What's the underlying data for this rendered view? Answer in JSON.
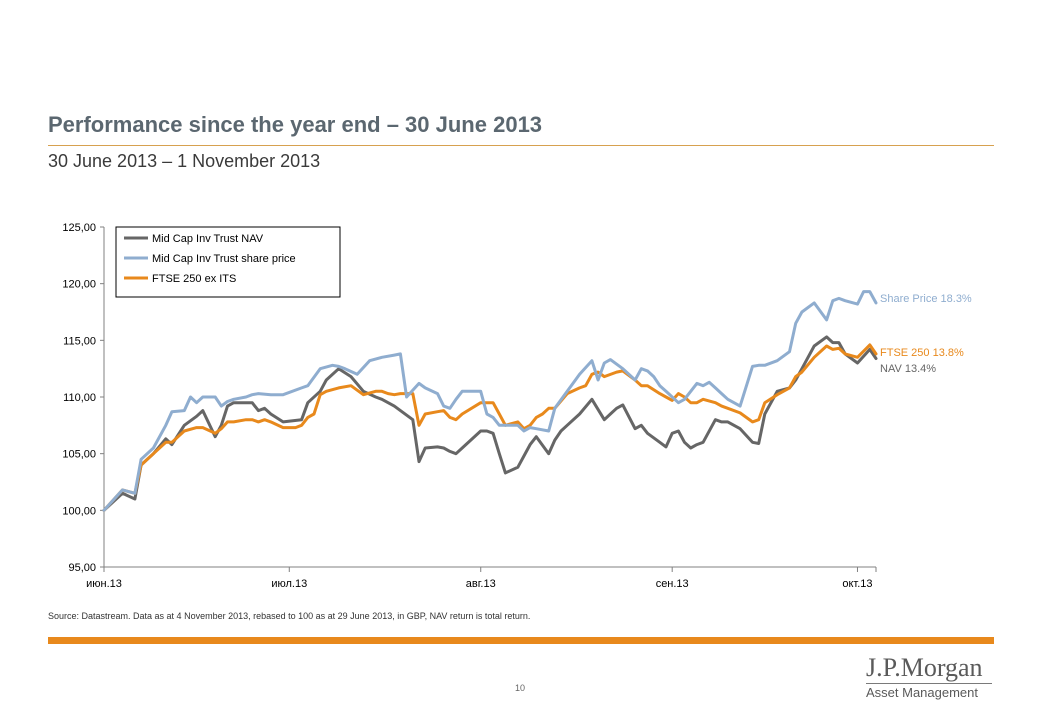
{
  "header": {
    "title": "Performance since the year end – 30 June 2013",
    "subtitle": "30 June 2013 – 1 November 2013"
  },
  "footer": {
    "source": "Source: Datastream. Data as at 4 November 2013, rebased to 100 as at 29 June 2013, in GBP, NAV return is total return.",
    "page_number": "10"
  },
  "logo": {
    "line1": "J.P.Morgan",
    "line2": "Asset Management"
  },
  "colors": {
    "title": "#5b6770",
    "accent_orange": "#e8891c",
    "nav": "#666666",
    "share_price": "#8fadcf",
    "ftse": "#e8891c"
  },
  "chart_data": {
    "type": "line",
    "ylim": [
      95,
      125
    ],
    "yticks": [
      "95,00",
      "100,00",
      "105,00",
      "110,00",
      "115,00",
      "120,00",
      "125,00"
    ],
    "ytick_values": [
      95,
      100,
      105,
      110,
      115,
      120,
      125
    ],
    "x_range": [
      0,
      125
    ],
    "xticks": [
      "июн.13",
      "июл.13",
      "авг.13",
      "сен.13",
      "окт.13"
    ],
    "xtick_values": [
      0,
      30,
      61,
      92,
      122
    ],
    "grid": false,
    "legend": "top-left",
    "end_labels": {
      "share_price": "Share Price 18.3%",
      "ftse": "FTSE 250 13.8%",
      "nav": "NAV 13.4%"
    },
    "series": [
      {
        "key": "nav",
        "name": "Mid Cap Inv Trust NAV",
        "color": "#666666",
        "x": [
          0,
          3,
          5,
          6,
          8,
          10,
          11,
          13,
          15,
          16,
          18,
          19,
          20,
          21,
          22,
          24,
          25,
          26,
          27,
          29,
          32,
          33,
          35,
          36,
          38,
          40,
          42,
          44,
          45,
          46,
          47,
          48,
          50,
          51,
          52,
          54,
          55,
          56,
          57,
          58,
          61,
          62,
          63,
          64,
          65,
          67,
          68,
          69,
          70,
          72,
          73,
          74,
          75,
          77,
          79,
          81,
          82,
          83,
          84,
          86,
          87,
          88,
          90,
          91,
          92,
          93,
          94,
          95,
          96,
          97,
          99,
          100,
          101,
          103,
          105,
          106,
          107,
          109,
          111,
          112,
          113,
          115,
          117,
          118,
          119,
          120,
          122,
          124,
          125
        ],
        "y": [
          100.0,
          101.5,
          101.0,
          104.0,
          105.0,
          106.3,
          105.8,
          107.5,
          108.3,
          108.8,
          106.5,
          107.5,
          109.2,
          109.5,
          109.5,
          109.5,
          108.8,
          109.0,
          108.5,
          107.8,
          108.0,
          109.5,
          110.5,
          111.5,
          112.5,
          111.8,
          110.5,
          110.0,
          109.8,
          109.5,
          109.2,
          108.8,
          108.0,
          104.3,
          105.5,
          105.6,
          105.5,
          105.2,
          105.0,
          105.5,
          107.0,
          107.0,
          106.8,
          105.0,
          103.3,
          103.8,
          104.8,
          105.8,
          106.5,
          105.0,
          106.2,
          107.0,
          107.5,
          108.5,
          109.8,
          108.0,
          108.5,
          109.0,
          109.3,
          107.2,
          107.5,
          106.8,
          106.0,
          105.6,
          106.8,
          107.0,
          106.0,
          105.5,
          105.8,
          106.0,
          108.0,
          107.8,
          107.8,
          107.2,
          106.0,
          105.9,
          108.5,
          110.5,
          110.8,
          111.5,
          112.5,
          114.5,
          115.3,
          114.8,
          114.8,
          113.8,
          113.0,
          114.2,
          113.4
        ]
      },
      {
        "key": "share_price",
        "name": "Mid Cap Inv Trust share price",
        "color": "#8fadcf",
        "x": [
          0,
          3,
          5,
          6,
          8,
          10,
          11,
          13,
          14,
          15,
          16,
          18,
          19,
          20,
          21,
          23,
          24,
          25,
          27,
          29,
          32,
          33,
          35,
          37,
          38,
          39,
          41,
          43,
          45,
          47,
          48,
          49,
          51,
          52,
          54,
          55,
          56,
          57,
          58,
          61,
          62,
          63,
          64,
          65,
          67,
          68,
          69,
          70,
          72,
          73,
          75,
          77,
          79,
          80,
          81,
          82,
          84,
          86,
          87,
          88,
          89,
          90,
          91,
          93,
          94,
          96,
          97,
          98,
          99,
          100,
          101,
          103,
          105,
          106,
          107,
          109,
          111,
          112,
          113,
          115,
          117,
          118,
          119,
          120,
          122,
          123,
          124,
          125
        ],
        "y": [
          100.0,
          101.8,
          101.5,
          104.5,
          105.5,
          107.5,
          108.7,
          108.8,
          110.0,
          109.5,
          110.0,
          110.0,
          109.2,
          109.6,
          109.8,
          110.0,
          110.2,
          110.3,
          110.2,
          110.2,
          110.8,
          111.0,
          112.5,
          112.8,
          112.7,
          112.5,
          112.0,
          113.2,
          113.5,
          113.7,
          113.8,
          110.0,
          111.2,
          110.8,
          110.3,
          109.2,
          109.0,
          109.8,
          110.5,
          110.5,
          108.5,
          108.2,
          107.5,
          107.5,
          107.5,
          107.0,
          107.3,
          107.2,
          107.0,
          109.0,
          110.5,
          112.0,
          113.2,
          111.5,
          113.0,
          113.3,
          112.5,
          111.5,
          112.5,
          112.3,
          111.8,
          111.0,
          110.5,
          109.5,
          109.8,
          111.2,
          111.0,
          111.3,
          110.8,
          110.3,
          109.8,
          109.2,
          112.7,
          112.8,
          112.8,
          113.2,
          114.0,
          116.5,
          117.5,
          118.3,
          116.8,
          118.5,
          118.7,
          118.5,
          118.2,
          119.3,
          119.3,
          118.3
        ]
      },
      {
        "key": "ftse",
        "name": "FTSE 250 ex ITS",
        "color": "#e8891c",
        "x": [
          0,
          3,
          5,
          6,
          8,
          10,
          11,
          13,
          15,
          16,
          18,
          19,
          20,
          21,
          23,
          24,
          25,
          26,
          27,
          29,
          31,
          32,
          33,
          34,
          35,
          36,
          38,
          40,
          42,
          44,
          45,
          46,
          47,
          48,
          50,
          51,
          52,
          54,
          55,
          56,
          57,
          58,
          61,
          62,
          63,
          64,
          65,
          67,
          68,
          69,
          70,
          71,
          72,
          73,
          75,
          77,
          78,
          79,
          80,
          81,
          83,
          84,
          86,
          87,
          88,
          90,
          91,
          92,
          93,
          94,
          95,
          96,
          97,
          99,
          100,
          101,
          103,
          104,
          105,
          106,
          107,
          109,
          111,
          112,
          113,
          115,
          117,
          118,
          119,
          120,
          122,
          124,
          125
        ],
        "y": [
          100.0,
          101.8,
          101.5,
          104.0,
          105.0,
          106.0,
          106.0,
          107.0,
          107.3,
          107.3,
          106.8,
          107.2,
          107.8,
          107.8,
          108.0,
          108.0,
          107.8,
          108.0,
          107.8,
          107.3,
          107.3,
          107.5,
          108.2,
          108.5,
          110.2,
          110.5,
          110.8,
          111.0,
          110.2,
          110.5,
          110.5,
          110.3,
          110.2,
          110.3,
          110.3,
          107.5,
          108.5,
          108.7,
          108.8,
          108.2,
          108.0,
          108.5,
          109.5,
          109.5,
          109.5,
          108.5,
          107.5,
          107.8,
          107.2,
          107.5,
          108.2,
          108.5,
          109.0,
          109.0,
          110.3,
          110.8,
          111.0,
          112.0,
          112.2,
          111.8,
          112.2,
          112.3,
          111.5,
          111.0,
          111.0,
          110.3,
          110.0,
          109.7,
          110.3,
          110.0,
          109.5,
          109.5,
          109.8,
          109.5,
          109.2,
          109.0,
          108.6,
          108.2,
          107.8,
          108.0,
          109.5,
          110.2,
          110.8,
          111.8,
          112.2,
          113.5,
          114.5,
          114.2,
          114.3,
          113.8,
          113.5,
          114.6,
          113.8
        ]
      }
    ]
  }
}
